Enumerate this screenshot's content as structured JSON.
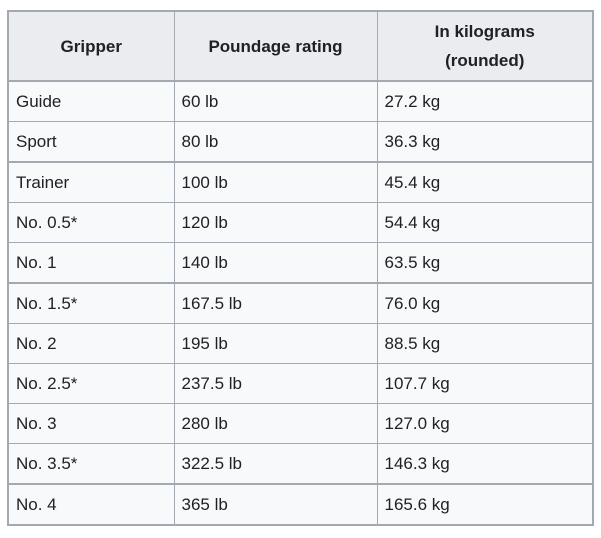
{
  "colors": {
    "page_bg": "#ffffff",
    "header_bg": "#eaecf0",
    "cell_bg": "#f8f9fa",
    "border": "#a2a9b1",
    "text": "#202122"
  },
  "chart_data": {
    "type": "table",
    "columns": [
      "Gripper",
      "Poundage rating",
      "In kilograms\n(rounded)"
    ],
    "column_keys": [
      "gripper",
      "poundage-rating",
      "kilograms"
    ],
    "rows": [
      [
        "Guide",
        "60 lb",
        "27.2 kg"
      ],
      [
        "Sport",
        "80 lb",
        "36.3 kg"
      ],
      [
        "Trainer",
        "100 lb",
        "45.4 kg"
      ],
      [
        "No. 0.5*",
        "120 lb",
        "54.4 kg"
      ],
      [
        "No. 1",
        "140 lb",
        "63.5 kg"
      ],
      [
        "No. 1.5*",
        "167.5 lb",
        "76.0 kg"
      ],
      [
        "No. 2",
        "195 lb",
        "88.5 kg"
      ],
      [
        "No. 2.5*",
        "237.5 lb",
        "107.7 kg"
      ],
      [
        "No. 3",
        "280 lb",
        "127.0 kg"
      ],
      [
        "No. 3.5*",
        "322.5 lb",
        "146.3 kg"
      ],
      [
        "No. 4",
        "365 lb",
        "165.6 kg"
      ]
    ],
    "grippers": [
      "Guide",
      "Sport",
      "Trainer",
      "No. 0.5*",
      "No. 1",
      "No. 1.5*",
      "No. 2",
      "No. 2.5*",
      "No. 3",
      "No. 3.5*",
      "No. 4"
    ],
    "poundage_lb": [
      60,
      80,
      100,
      120,
      140,
      167.5,
      195,
      237.5,
      280,
      322.5,
      365
    ],
    "kilograms_rounded": [
      27.2,
      36.3,
      45.4,
      54.4,
      63.5,
      76.0,
      88.5,
      107.7,
      127.0,
      146.3,
      165.6
    ]
  }
}
